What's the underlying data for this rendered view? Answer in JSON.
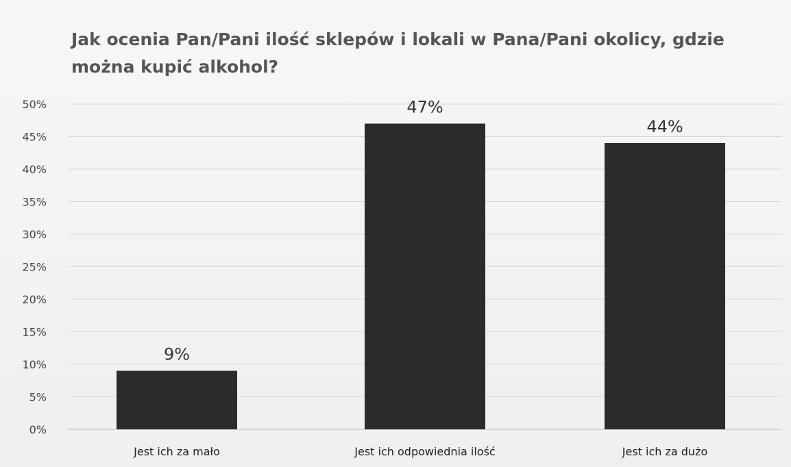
{
  "chart_data": {
    "type": "bar",
    "title": "Jak ocenia Pan/Pani ilość sklepów i lokali w Pana/Pani okolicy, gdzie można kupić alkohol?",
    "categories": [
      "Jest ich za mało",
      "Jest ich odpowiednia ilość",
      "Jest ich za dużo"
    ],
    "values": [
      9,
      47,
      44
    ],
    "data_labels": [
      "9%",
      "47%",
      "44%"
    ],
    "y_ticks": [
      "0%",
      "5%",
      "10%",
      "15%",
      "20%",
      "25%",
      "30%",
      "35%",
      "40%",
      "45%",
      "50%"
    ],
    "ylim": [
      0,
      50
    ],
    "y_unit": "%",
    "grid": true,
    "legend": "none",
    "bar_color": "#2b2b2b"
  }
}
